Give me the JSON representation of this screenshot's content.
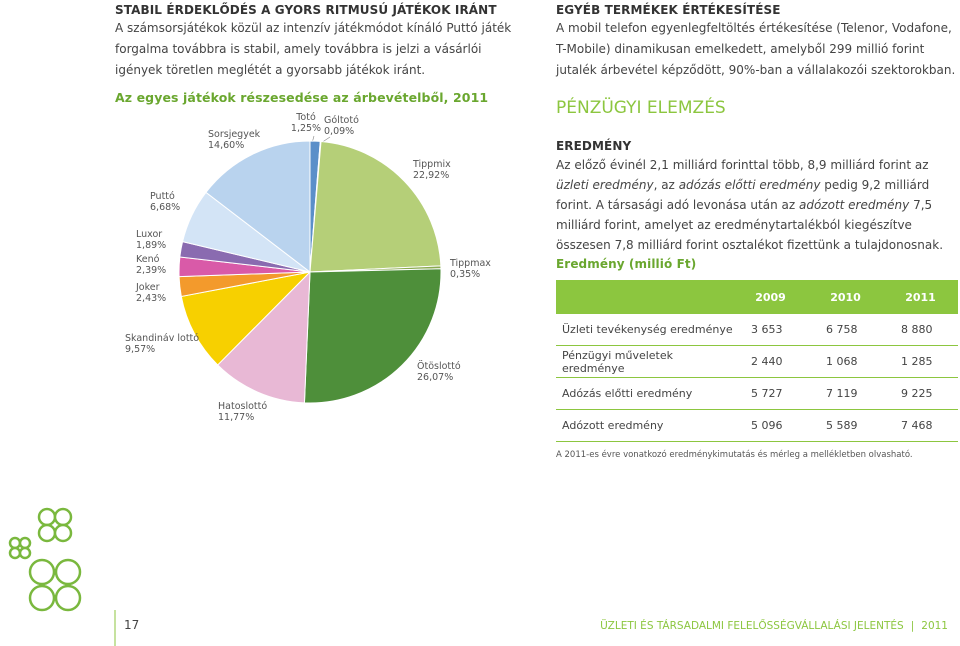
{
  "left": {
    "heading": "STABIL ÉRDEKLŐDÉS A GYORS RITMUSÚ JÁTÉKOK IRÁNT",
    "paragraph": "A számsorsjátékok közül az intenzív játékmódot kínáló Puttó játék forgalma továbbra is stabil, amely továbbra is jelzi a vásárlói igények töretlen meglétét a gyorsabb játékok iránt."
  },
  "chart_data": {
    "type": "pie",
    "title": "Az egyes játékok részesedése az árbevételből, 2011",
    "categories": [
      "Totó",
      "Góltotó",
      "Tippmix",
      "Tippmax",
      "Ötöslottó",
      "Hatoslottó",
      "Skandináv lottó",
      "Joker",
      "Kenó",
      "Luxor",
      "Puttó",
      "Sorsjegyek"
    ],
    "values": [
      1.25,
      0.09,
      22.92,
      0.35,
      26.07,
      11.77,
      9.57,
      2.43,
      2.39,
      1.89,
      6.68,
      14.6
    ],
    "value_labels": [
      "1,25%",
      "0,09%",
      "22,92%",
      "0,35%",
      "26,07%",
      "11,77%",
      "9,57%",
      "2,43%",
      "2,39%",
      "1,89%",
      "6,68%",
      "14,60%"
    ],
    "colors": [
      "#5b8fc9",
      "#1f3f7a",
      "#b5cf78",
      "#8aaa50",
      "#4e8f3a",
      "#e8b8d5",
      "#f7d000",
      "#f39a2c",
      "#d95aa8",
      "#8a6bb0",
      "#d3e4f6",
      "#b9d3ee"
    ]
  },
  "right": {
    "heading": "EGYÉB TERMÉKEK ÉRTÉKESÍTÉSE",
    "paragraph": "A mobil telefon egyenlegfeltöltés értékesítése (Telenor, Vodafone, T-Mobile) dinamikusan emelkedett, amelyből 299 millió forint jutalék árbevétel képződött, 90%-ban a vállalakozói szektorokban.",
    "section": "PÉNZÜGYI ELEMZÉS",
    "subheading": "EREDMÉNY",
    "result_paragraph": [
      "Az előző évinél 2,1 milliárd forinttal több, 8,9 milliárd forint az ",
      "üzleti eredmény",
      ", az ",
      "adózás előtti eredmény",
      " pedig 9,2 milliárd forint. A társasági adó levonása után az ",
      "adózott eredmény",
      " 7,5 milliárd forint, amelyet az eredménytartalékból kiegészítve összesen 7,8 milliárd forint osztalékot fizettünk a tulajdonosnak."
    ],
    "table_title": "Eredmény (millió Ft)"
  },
  "table": {
    "header": [
      "2009",
      "2010",
      "2011"
    ],
    "rows": [
      [
        "Üzleti tevékenység eredménye",
        "3 653",
        "6 758",
        "8 880"
      ],
      [
        "Pénzügyi műveletek eredménye",
        "2 440",
        "1 068",
        "1 285"
      ],
      [
        "Adózás előtti eredmény",
        "5 727",
        "7 119",
        "9 225"
      ],
      [
        "Adózott eredmény",
        "5 096",
        "5 589",
        "7 468"
      ]
    ],
    "note": "A 2011-es évre vonatkozó eredménykimutatás és mérleg a mellékletben olvasható."
  },
  "footer": {
    "page": "17",
    "title": "ÜZLETI ÉS TÁRSADALMI FELELŐSSÉGVÁLLALÁSI JELENTÉS",
    "year": "2011"
  }
}
